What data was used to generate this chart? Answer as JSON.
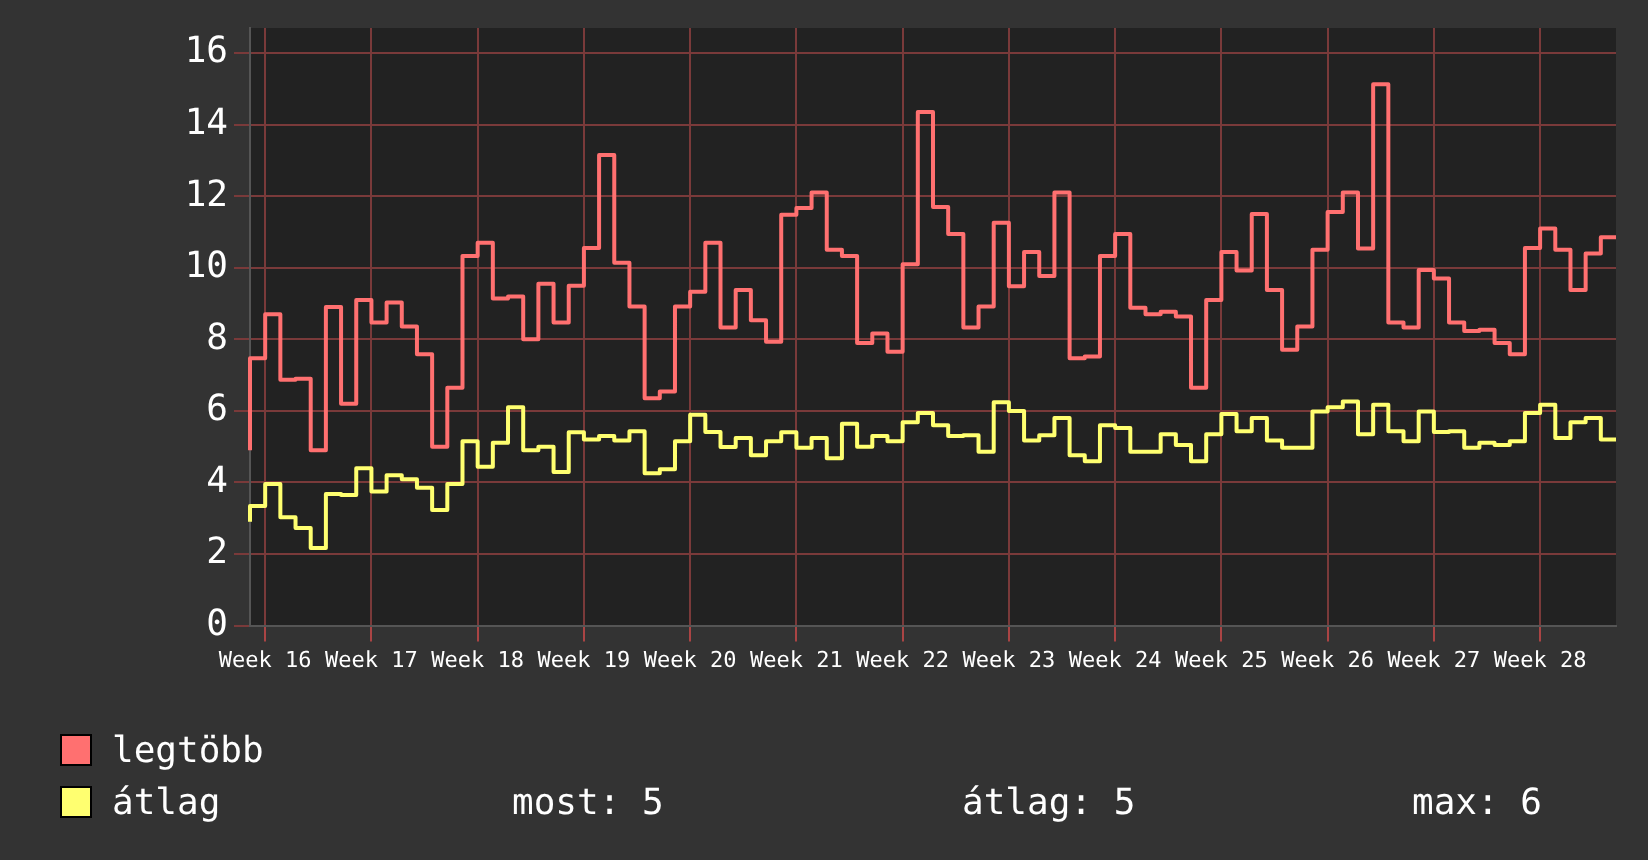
{
  "chart_data": {
    "type": "step",
    "categories": [
      null,
      "Week 16",
      null,
      null,
      null,
      null,
      null,
      null,
      "Week 17",
      null,
      null,
      null,
      null,
      null,
      null,
      "Week 18",
      null,
      null,
      null,
      null,
      null,
      null,
      "Week 19",
      null,
      null,
      null,
      null,
      null,
      null,
      "Week 20",
      null,
      null,
      null,
      null,
      null,
      null,
      "Week 21",
      null,
      null,
      null,
      null,
      null,
      null,
      "Week 22",
      null,
      null,
      null,
      null,
      null,
      null,
      "Week 23",
      null,
      null,
      null,
      null,
      null,
      null,
      "Week 24",
      null,
      null,
      null,
      null,
      null,
      null,
      "Week 25",
      null,
      null,
      null,
      null,
      null,
      null,
      "Week 26",
      null,
      null,
      null,
      null,
      null,
      null,
      "Week 27",
      null,
      null,
      null,
      null,
      null,
      null,
      "Week 28",
      null,
      null,
      null,
      null,
      null
    ],
    "series": [
      {
        "name": "legtöbb",
        "color": "#ff7070",
        "values": [
          4.9,
          7.47,
          8.7,
          6.87,
          6.9,
          4.9,
          8.9,
          6.2,
          9.1,
          8.47,
          9.03,
          8.36,
          7.58,
          5.0,
          6.65,
          10.33,
          10.7,
          9.14,
          9.2,
          8.0,
          9.55,
          8.47,
          9.5,
          10.55,
          13.15,
          10.14,
          8.92,
          6.35,
          6.54,
          8.92,
          9.33,
          10.7,
          8.33,
          9.38,
          8.53,
          7.93,
          11.48,
          11.67,
          12.1,
          10.5,
          10.33,
          7.9,
          8.16,
          7.65,
          10.1,
          14.35,
          11.7,
          10.94,
          8.33,
          8.92,
          11.26,
          9.48,
          10.44,
          9.77,
          12.1,
          7.47,
          7.52,
          10.33,
          10.94,
          8.88,
          8.7,
          8.77,
          8.64,
          6.65,
          9.1,
          10.44,
          9.92,
          11.5,
          9.38,
          7.71,
          8.36,
          10.5,
          11.56,
          12.1,
          10.54,
          15.13,
          8.47,
          8.33,
          9.94,
          9.7,
          8.47,
          8.23,
          8.27,
          7.9,
          7.58,
          10.55,
          11.1,
          10.5,
          9.38,
          10.4,
          10.85
        ]
      },
      {
        "name": "átlag",
        "color": "#ffff70",
        "values": [
          2.9,
          3.34,
          3.96,
          3.03,
          2.73,
          2.17,
          3.68,
          3.65,
          4.4,
          3.75,
          4.2,
          4.09,
          3.85,
          3.23,
          3.96,
          5.15,
          4.44,
          5.11,
          6.1,
          4.9,
          5.0,
          4.29,
          5.4,
          5.2,
          5.3,
          5.17,
          5.43,
          4.26,
          4.37,
          5.15,
          5.89,
          5.41,
          4.99,
          5.24,
          4.76,
          5.15,
          5.4,
          4.97,
          5.24,
          4.68,
          5.64,
          5.0,
          5.3,
          5.15,
          5.68,
          5.94,
          5.6,
          5.3,
          5.32,
          4.86,
          6.24,
          6.0,
          5.17,
          5.32,
          5.8,
          4.76,
          4.59,
          5.6,
          5.52,
          4.86,
          4.86,
          5.35,
          5.05,
          4.59,
          5.35,
          5.91,
          5.43,
          5.8,
          5.17,
          4.97,
          4.97,
          5.98,
          6.1,
          6.26,
          5.35,
          6.17,
          5.43,
          5.15,
          5.98,
          5.41,
          5.43,
          4.97,
          5.11,
          5.05,
          5.15,
          5.94,
          6.17,
          5.24,
          5.68,
          5.8,
          5.2
        ]
      }
    ],
    "ylim": [
      0,
      16.7
    ],
    "yticks": [
      0,
      2,
      4,
      6,
      8,
      10,
      12,
      14,
      16
    ],
    "grid": true,
    "legend": "bottom left",
    "annotations": [
      "most: 5",
      "átlag: 5",
      "max: 6"
    ]
  }
}
